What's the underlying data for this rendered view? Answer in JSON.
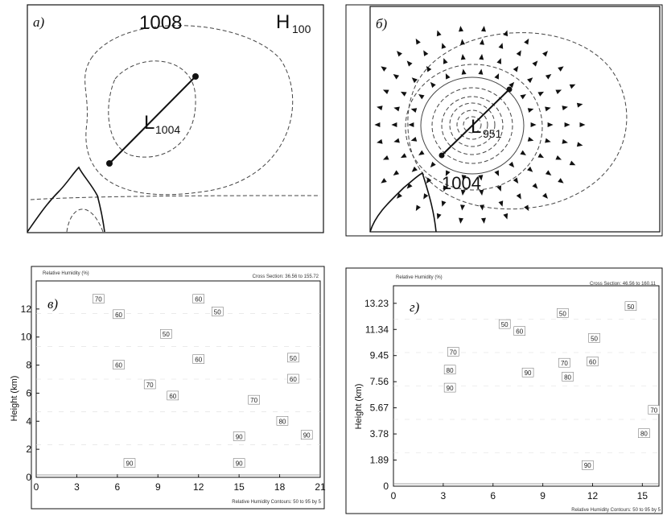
{
  "panels": {
    "a": {
      "label": "а)",
      "high": {
        "letter": "H",
        "value": "100"
      },
      "low": {
        "letter": "L",
        "value": "1004"
      },
      "isobar_label": "1008"
    },
    "b": {
      "label": "б)",
      "low": {
        "letter": "L",
        "value": "951"
      },
      "isobar_label": "1004"
    },
    "v": {
      "label": "в)"
    },
    "g": {
      "label": "г)"
    }
  },
  "chart_data": [
    {
      "type": "contour",
      "panel": "в",
      "title": "Relative Humidity (%)",
      "subtitle": "Cross Section: 36.56 to 155.72",
      "xlabel": "",
      "ylabel": "Height (km)",
      "caption": "Relative Humidity Contours: 50 to 95 by 5",
      "xlim": [
        0,
        21
      ],
      "ylim": [
        0,
        14
      ],
      "xticks": [
        "0",
        "3",
        "6",
        "9",
        "12",
        "15",
        "18",
        "21"
      ],
      "yticks": [
        "0",
        "2",
        "4",
        "6",
        "8",
        "10",
        "12"
      ],
      "contour_labels": [
        {
          "x": 4.6,
          "y": 12.7,
          "text": "70"
        },
        {
          "x": 6.1,
          "y": 11.6,
          "text": "60"
        },
        {
          "x": 6.1,
          "y": 8.0,
          "text": "60"
        },
        {
          "x": 8.4,
          "y": 6.6,
          "text": "70"
        },
        {
          "x": 9.6,
          "y": 10.2,
          "text": "50"
        },
        {
          "x": 10.1,
          "y": 5.8,
          "text": "60"
        },
        {
          "x": 12.0,
          "y": 12.7,
          "text": "60"
        },
        {
          "x": 12.0,
          "y": 8.4,
          "text": "60"
        },
        {
          "x": 13.4,
          "y": 11.8,
          "text": "50"
        },
        {
          "x": 15.0,
          "y": 2.9,
          "text": "90"
        },
        {
          "x": 15.0,
          "y": 1.0,
          "text": "90"
        },
        {
          "x": 16.1,
          "y": 5.5,
          "text": "70"
        },
        {
          "x": 18.2,
          "y": 4.0,
          "text": "80"
        },
        {
          "x": 19.0,
          "y": 8.5,
          "text": "50"
        },
        {
          "x": 19.0,
          "y": 7.0,
          "text": "60"
        },
        {
          "x": 20.0,
          "y": 3.0,
          "text": "90"
        },
        {
          "x": 6.9,
          "y": 1.0,
          "text": "90"
        }
      ]
    },
    {
      "type": "contour",
      "panel": "г",
      "title": "Relative Humidity (%)",
      "subtitle": "Cross Section: 46.56 to 160.11",
      "xlabel": "",
      "ylabel": "Height (km)",
      "caption": "Relative Humidity Contours: 50 to 95 by 5",
      "xlim": [
        0,
        16
      ],
      "ylim": [
        0,
        14.5
      ],
      "xticks": [
        "0",
        "3",
        "6",
        "9",
        "12",
        "15"
      ],
      "yticks": [
        {
          "v": 0,
          "t": "0"
        },
        {
          "v": 1.89,
          "t": "1.89"
        },
        {
          "v": 3.78,
          "t": "3.78"
        },
        {
          "v": 5.67,
          "t": "5.67"
        },
        {
          "v": 7.56,
          "t": "7.56"
        },
        {
          "v": 9.45,
          "t": "9.45"
        },
        {
          "v": 11.34,
          "t": "11.34"
        },
        {
          "v": 13.23,
          "t": "13.23"
        }
      ],
      "contour_labels": [
        {
          "x": 3.6,
          "y": 9.7,
          "text": "70"
        },
        {
          "x": 3.4,
          "y": 8.4,
          "text": "80"
        },
        {
          "x": 3.4,
          "y": 7.1,
          "text": "90"
        },
        {
          "x": 6.7,
          "y": 11.7,
          "text": "50"
        },
        {
          "x": 7.6,
          "y": 11.2,
          "text": "60"
        },
        {
          "x": 8.1,
          "y": 8.2,
          "text": "90"
        },
        {
          "x": 10.2,
          "y": 12.5,
          "text": "50"
        },
        {
          "x": 10.3,
          "y": 8.9,
          "text": "70"
        },
        {
          "x": 10.5,
          "y": 7.9,
          "text": "80"
        },
        {
          "x": 12.1,
          "y": 10.7,
          "text": "50"
        },
        {
          "x": 12.0,
          "y": 9.0,
          "text": "60"
        },
        {
          "x": 11.7,
          "y": 1.5,
          "text": "90"
        },
        {
          "x": 14.3,
          "y": 13.0,
          "text": "50"
        },
        {
          "x": 15.7,
          "y": 5.5,
          "text": "70"
        },
        {
          "x": 15.1,
          "y": 3.8,
          "text": "80"
        }
      ]
    }
  ]
}
